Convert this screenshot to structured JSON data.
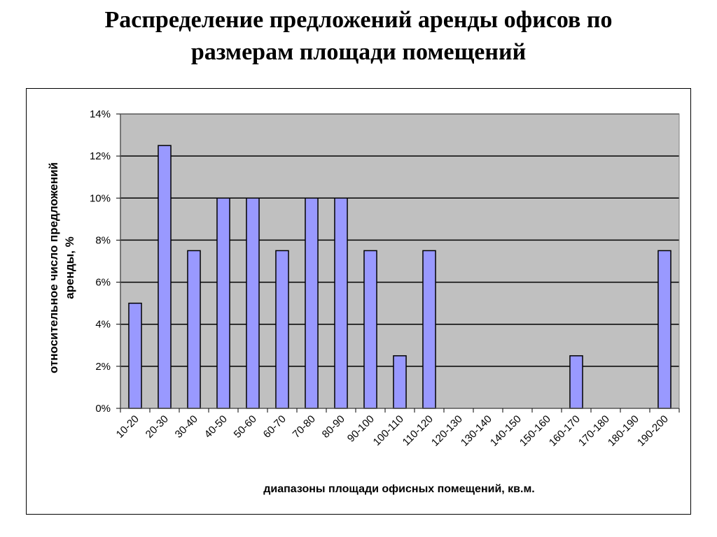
{
  "page": {
    "title_line1": "Распределение предложений аренды офисов по",
    "title_line2": "размерам площади помещений"
  },
  "colors": {
    "plot_background": "#c0c0c0",
    "bar_fill": "#9999ff",
    "bar_stroke": "#000000",
    "gridline": "#000000"
  },
  "chart_data": {
    "type": "bar",
    "title": "Распределение предложений аренды офисов по размерам площади помещений",
    "xlabel": "диапазоны площади офисных помещений, кв.м.",
    "ylabel": "относительное число предложений аренды, %",
    "ylim": [
      0,
      14
    ],
    "y_ticks": [
      0,
      2,
      4,
      6,
      8,
      10,
      12,
      14
    ],
    "y_tick_labels": [
      "0%",
      "2%",
      "4%",
      "6%",
      "8%",
      "10%",
      "12%",
      "14%"
    ],
    "grid": "horizontal",
    "categories": [
      "10-20",
      "20-30",
      "30-40",
      "40-50",
      "50-60",
      "60-70",
      "70-80",
      "80-90",
      "90-100",
      "100-110",
      "110-120",
      "120-130",
      "130-140",
      "140-150",
      "150-160",
      "160-170",
      "170-180",
      "180-190",
      "190-200"
    ],
    "values": [
      5,
      12.5,
      7.5,
      10,
      10,
      7.5,
      10,
      10,
      7.5,
      2.5,
      7.5,
      0,
      0,
      0,
      0,
      2.5,
      0,
      0,
      7.5
    ]
  }
}
